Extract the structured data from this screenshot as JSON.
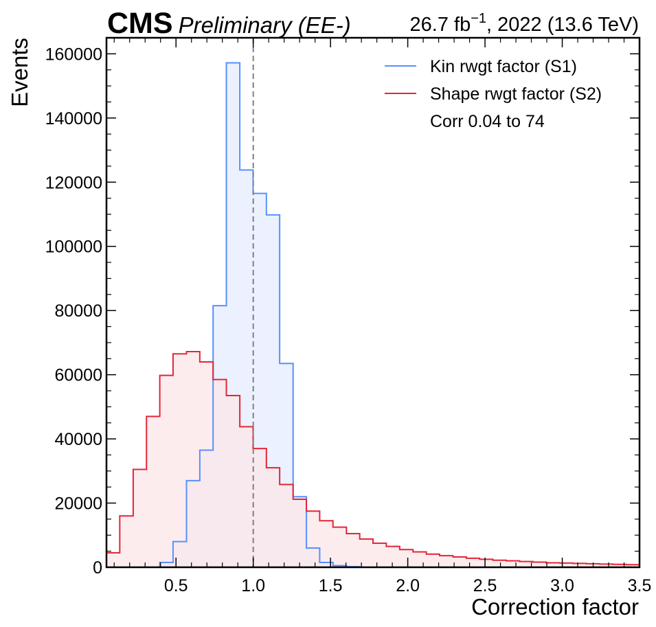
{
  "header": {
    "cms": "CMS",
    "extra": "Preliminary (EE-)",
    "lumi_main": "26.7 fb",
    "lumi_sup": "−1",
    "lumi_tail": ", 2022 (13.6 TeV)"
  },
  "chart_data": {
    "type": "histogram",
    "xlabel": "Correction factor",
    "ylabel": "Events",
    "xlim": [
      0.05,
      3.5
    ],
    "ylim": [
      0,
      165000
    ],
    "x_ticks": [
      0.5,
      1.0,
      1.5,
      2.0,
      2.5,
      3.0,
      3.5
    ],
    "x_tick_labels": [
      "0.5",
      "1.0",
      "1.5",
      "2.0",
      "2.5",
      "3.0",
      "3.5"
    ],
    "y_ticks": [
      0,
      20000,
      40000,
      60000,
      80000,
      100000,
      120000,
      140000,
      160000
    ],
    "y_tick_labels": [
      "0",
      "20000",
      "40000",
      "60000",
      "80000",
      "100000",
      "120000",
      "140000",
      "160000"
    ],
    "reference_line_x": 1.0,
    "legend_position": "top-right",
    "bin_edges": [
      0.05,
      0.136,
      0.223,
      0.309,
      0.395,
      0.481,
      0.568,
      0.654,
      0.74,
      0.826,
      0.913,
      0.999,
      1.085,
      1.171,
      1.258,
      1.344,
      1.43,
      1.516,
      1.603,
      1.689,
      1.775,
      1.861,
      1.948,
      2.034,
      2.12,
      2.206,
      2.293,
      2.379,
      2.465,
      2.551,
      2.638,
      2.724,
      2.81,
      2.896,
      2.983,
      3.069,
      3.155,
      3.241,
      3.328,
      3.414,
      3.5
    ],
    "series": [
      {
        "name": "Kin rwgt factor (S1)",
        "color": "#5790fc",
        "fill": "#ebf1fe",
        "values": [
          0,
          0,
          0,
          0,
          1500,
          8000,
          27000,
          36500,
          81500,
          157200,
          123800,
          116500,
          109800,
          63500,
          22000,
          6000,
          1500,
          500,
          200,
          0,
          0,
          0,
          0,
          0,
          0,
          0,
          0,
          0,
          0,
          0,
          0,
          0,
          0,
          0,
          0,
          0,
          0,
          0,
          0,
          0
        ]
      },
      {
        "name": "Shape rwgt factor (S2)",
        "color": "#e42536",
        "fill": "#fbe5e8",
        "values": [
          4500,
          16000,
          30500,
          47000,
          59800,
          66500,
          67200,
          64000,
          58500,
          53500,
          43800,
          37000,
          31000,
          25800,
          21200,
          17500,
          14500,
          12500,
          10500,
          8800,
          7500,
          6500,
          5500,
          4800,
          4100,
          3600,
          3200,
          2800,
          2500,
          2200,
          2000,
          1800,
          1600,
          1400,
          1300,
          1200,
          1100,
          1000,
          900,
          800
        ]
      }
    ],
    "legend_note": "Corr 0.04 to 74"
  }
}
